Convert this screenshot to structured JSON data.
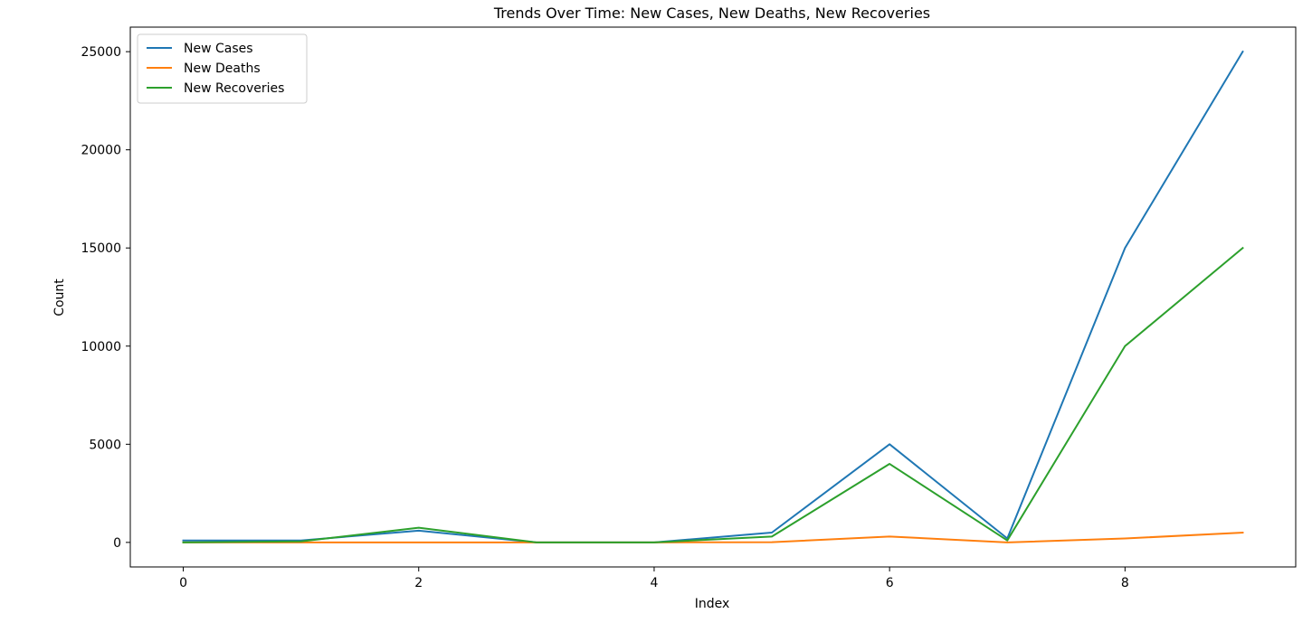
{
  "chart_data": {
    "type": "line",
    "title": "Trends Over Time: New Cases, New Deaths, New Recoveries",
    "xlabel": "Index",
    "ylabel": "Count",
    "x": [
      0,
      1,
      2,
      3,
      4,
      5,
      6,
      7,
      8,
      9
    ],
    "xlim": [
      -0.45,
      9.45
    ],
    "ylim": [
      -1250,
      26250
    ],
    "xticks": [
      0,
      2,
      4,
      6,
      8
    ],
    "yticks": [
      0,
      5000,
      10000,
      15000,
      20000,
      25000
    ],
    "grid": false,
    "legend_position": "top-left",
    "series": [
      {
        "name": "New Cases",
        "color": "#1f77b4",
        "values": [
          100,
          100,
          600,
          0,
          0,
          500,
          5000,
          200,
          15000,
          25000
        ]
      },
      {
        "name": "New Deaths",
        "color": "#ff7f0e",
        "values": [
          0,
          0,
          0,
          0,
          0,
          10,
          300,
          0,
          200,
          500
        ]
      },
      {
        "name": "New Recoveries",
        "color": "#2ca02c",
        "values": [
          0,
          50,
          750,
          0,
          0,
          300,
          4000,
          100,
          10000,
          15000
        ]
      }
    ]
  }
}
